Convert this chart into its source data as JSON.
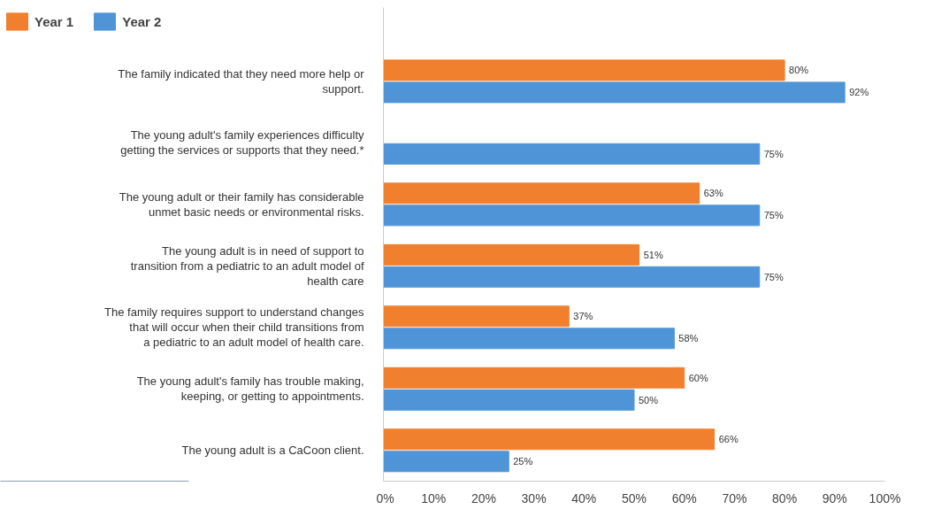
{
  "chart_data": {
    "type": "bar",
    "orientation": "horizontal",
    "legend": "top left",
    "grid": false,
    "categories": [
      "The family indicated that they need more help or support.",
      "The young adult's family experiences difficulty getting the services or supports that they need.*",
      "The young adult or their family has considerable unmet basic needs or environmental risks.",
      "The young adult is in need of support to transition from a pediatric to an adult model of health care",
      "The family requires support to understand changes that will occur when their child transitions from a pediatric to an adult model of health care.",
      "The young adult's family has trouble making, keeping, or getting to appointments.",
      "The young adult is a CaCoon client."
    ],
    "series": [
      {
        "name": "Year 1",
        "color": "#f07f2e",
        "values": [
          80,
          null,
          63,
          51,
          37,
          60,
          66
        ],
        "value_labels": [
          "80%",
          null,
          "63%",
          "51%",
          "37%",
          "60%",
          "66%"
        ]
      },
      {
        "name": "Year 2",
        "color": "#4f94d6",
        "values": [
          92,
          75,
          75,
          75,
          58,
          50,
          25
        ],
        "value_labels": [
          "92%",
          "75%",
          "75%",
          "75%",
          "58%",
          "50%",
          "25%"
        ]
      }
    ],
    "xlim": [
      0,
      100
    ],
    "xticks": [
      {
        "value": 0,
        "label": "0%"
      },
      {
        "value": 10,
        "label": "10%"
      },
      {
        "value": 20,
        "label": "20%"
      },
      {
        "value": 30,
        "label": "30%"
      },
      {
        "value": 40,
        "label": "40%"
      },
      {
        "value": 50,
        "label": "50%"
      },
      {
        "value": 60,
        "label": "60%"
      },
      {
        "value": 70,
        "label": "70%"
      },
      {
        "value": 80,
        "label": "80%"
      },
      {
        "value": 90,
        "label": "90%"
      },
      {
        "value": 100,
        "label": "100%"
      }
    ]
  }
}
